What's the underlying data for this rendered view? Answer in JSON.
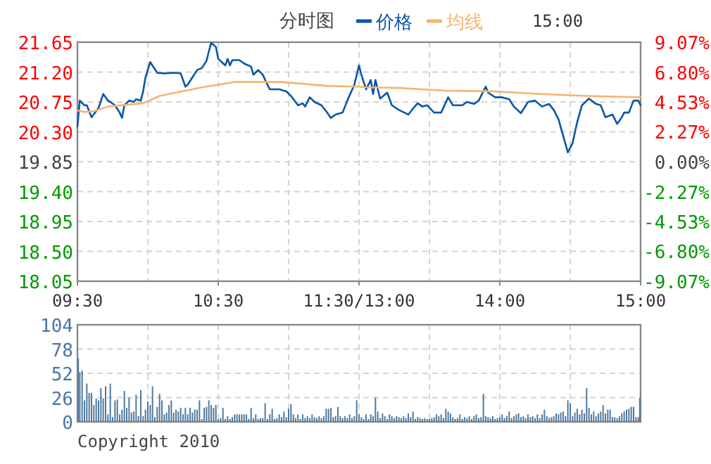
{
  "chart_data": [
    {
      "type": "line",
      "title": "分时图",
      "annotations": [
        "15:00"
      ],
      "legend": "top",
      "grid": true,
      "categories": [
        "09:30",
        null,
        null,
        null,
        null,
        null,
        null,
        null,
        null,
        null,
        null,
        null,
        null,
        null,
        null,
        null,
        null,
        null,
        null,
        null,
        null,
        null,
        null,
        null,
        null,
        null,
        null,
        null,
        null,
        null,
        null,
        null,
        null,
        null,
        null,
        null,
        null,
        null,
        null,
        null,
        null,
        null,
        null,
        null,
        null,
        null,
        null,
        null,
        null,
        null,
        null,
        null,
        null,
        null,
        null,
        null,
        null,
        null,
        null,
        null,
        "10:30",
        null,
        null,
        null,
        null,
        null,
        null,
        null,
        null,
        null,
        null,
        null,
        null,
        null,
        null,
        null,
        null,
        null,
        null,
        null,
        null,
        null,
        null,
        null,
        null,
        null,
        null,
        null,
        null,
        null,
        null,
        null,
        null,
        null,
        null,
        null,
        null,
        null,
        null,
        null,
        null,
        null,
        null,
        null,
        null,
        null,
        null,
        null,
        null,
        null,
        null,
        null,
        null,
        null,
        null,
        null,
        null,
        null,
        null,
        null,
        "11:30/13:00",
        null,
        null,
        null,
        null,
        null,
        null,
        null,
        null,
        null,
        null,
        null,
        null,
        null,
        null,
        null,
        null,
        null,
        null,
        null,
        null,
        null,
        null,
        null,
        null,
        null,
        null,
        null,
        null,
        null,
        null,
        null,
        null,
        null,
        null,
        null,
        null,
        null,
        null,
        null,
        null,
        null,
        null,
        null,
        null,
        null,
        null,
        null,
        null,
        null,
        null,
        null,
        null,
        null,
        null,
        null,
        null,
        null,
        null,
        null,
        "14:00",
        null,
        null,
        null,
        null,
        null,
        null,
        null,
        null,
        null,
        null,
        null,
        null,
        null,
        null,
        null,
        null,
        null,
        null,
        null,
        null,
        null,
        null,
        null,
        null,
        null,
        null,
        null,
        null,
        null,
        null,
        null,
        null,
        null,
        null,
        null,
        null,
        null,
        null,
        null,
        null,
        null,
        null,
        null,
        null,
        null,
        null,
        null,
        null,
        null,
        null,
        null,
        null,
        null,
        null,
        null,
        null,
        null,
        null,
        null,
        "15:00"
      ],
      "ylim": [
        18.05,
        21.65
      ],
      "yticks": [
        {
          "value": 18.05,
          "label": "18.05"
        },
        {
          "value": 18.5,
          "label": "18.50"
        },
        {
          "value": 18.95,
          "label": "18.95"
        },
        {
          "value": 19.4,
          "label": "19.40"
        },
        {
          "value": 19.85,
          "label": "19.85"
        },
        {
          "value": 20.3,
          "label": "20.30"
        },
        {
          "value": 20.75,
          "label": "20.75"
        },
        {
          "value": 21.2,
          "label": "21.20"
        },
        {
          "value": 21.65,
          "label": "21.65"
        }
      ],
      "y2lim": [
        -9.07,
        9.07
      ],
      "y2ticks": [
        {
          "value": -9.07,
          "label": "-9.07%"
        },
        {
          "value": -6.8,
          "label": "-6.80%"
        },
        {
          "value": -4.53,
          "label": "-4.53%"
        },
        {
          "value": -2.27,
          "label": "-2.27%"
        },
        {
          "value": 0,
          "label": "0.00%"
        },
        {
          "value": 2.27,
          "label": "2.27%"
        },
        {
          "value": 4.53,
          "label": "4.53%"
        },
        {
          "value": 6.8,
          "label": "6.80%"
        },
        {
          "value": 9.07,
          "label": "9.07%"
        }
      ],
      "series": [
        {
          "name": "价格",
          "color": "#0a56a8",
          "values": [
            20.38,
            20.77,
            null,
            20.7,
            20.7,
            null,
            20.52,
            null,
            null,
            20.66,
            null,
            20.87,
            null,
            20.77,
            20.75,
            null,
            20.7,
            null,
            20.59,
            20.51,
            20.7,
            null,
            20.77,
            null,
            20.75,
            20.79,
            null,
            20.77,
            20.91,
            21.12,
            null,
            21.35,
            null,
            null,
            21.19,
            null,
            null,
            21.18,
            null,
            null,
            null,
            21.19,
            null,
            null,
            21.18,
            null,
            20.98,
            21.01,
            null,
            21.12,
            null,
            21.23,
            null,
            21.26,
            null,
            21.37,
            21.51,
            21.64,
            null,
            21.58,
            21.4,
            null,
            null,
            21.3,
            21.4,
            21.3,
            21.38,
            null,
            null,
            21.38,
            null,
            21.33,
            null,
            null,
            21.28,
            21.16,
            null,
            21.23,
            null,
            21.16,
            21.08,
            null,
            20.94,
            null,
            null,
            null,
            20.94,
            null,
            null,
            20.91,
            null,
            20.84,
            null,
            null,
            20.7,
            null,
            20.73,
            20.68,
            null,
            20.82,
            null,
            20.75,
            null,
            null,
            20.7,
            null,
            20.61,
            null,
            20.51,
            null,
            20.56,
            null,
            null,
            20.59,
            null,
            20.77,
            null,
            null,
            21.01,
            null,
            21.3,
            21.16,
            null,
            20.94,
            null,
            21.08,
            20.87,
            21.08,
            null,
            20.8,
            null,
            null,
            20.89,
            null,
            20.7,
            null,
            null,
            20.63,
            null,
            null,
            null,
            20.56,
            null,
            20.65,
            null,
            20.73,
            null,
            20.68,
            null,
            20.7,
            null,
            null,
            20.59,
            null,
            null,
            20.59,
            null,
            null,
            20.82,
            null,
            20.7,
            null,
            null,
            null,
            20.7,
            null,
            20.75,
            null,
            null,
            20.72,
            null,
            20.77,
            null,
            null,
            20.98,
            20.89,
            null,
            null,
            20.82,
            null,
            null,
            20.82,
            null,
            null,
            20.79,
            null,
            20.68,
            null,
            null,
            20.58,
            null,
            null,
            20.75,
            null,
            null,
            20.77,
            null,
            null,
            20.68,
            null,
            null,
            20.72,
            null,
            20.63,
            null,
            20.49,
            null,
            20.24,
            null,
            19.99,
            null,
            20.13,
            null,
            20.45,
            null,
            20.7,
            null,
            null,
            20.8,
            null,
            null,
            20.72,
            null,
            20.7,
            null,
            20.52,
            null,
            null,
            20.56,
            null,
            20.42,
            null,
            20.52,
            20.59,
            null,
            20.59,
            null,
            20.77,
            null,
            20.77,
            20.7
          ]
        },
        {
          "name": "均线",
          "color": "#f5b46e",
          "values": [
            20.62,
            null,
            null,
            20.6,
            null,
            null,
            null,
            20.61,
            null,
            null,
            null,
            null,
            null,
            20.68,
            null,
            null,
            null,
            null,
            null,
            null,
            null,
            null,
            null,
            null,
            null,
            null,
            null,
            null,
            20.73,
            null,
            null,
            null,
            null,
            null,
            null,
            20.84,
            null,
            null,
            null,
            null,
            null,
            null,
            null,
            null,
            null,
            null,
            null,
            null,
            null,
            null,
            null,
            null,
            null,
            20.97,
            null,
            null,
            null,
            null,
            null,
            null,
            null,
            null,
            null,
            null,
            null,
            null,
            null,
            21.05,
            null,
            null,
            null,
            null,
            null,
            null,
            null,
            null,
            null,
            null,
            null,
            null,
            null,
            null,
            null,
            null,
            null,
            null,
            null,
            21.05,
            null,
            null,
            null,
            null,
            null,
            null,
            null,
            null,
            null,
            null,
            null,
            null,
            null,
            null,
            null,
            null,
            null,
            null,
            null,
            20.99,
            null,
            null,
            null,
            null,
            null,
            null,
            null,
            null,
            null,
            null,
            null,
            null,
            20.98,
            null,
            null,
            20.97,
            null,
            null,
            null,
            null,
            null,
            null,
            null,
            null,
            null,
            null,
            null,
            null,
            null,
            20.96,
            null,
            null,
            null,
            null,
            null,
            null,
            null,
            null,
            null,
            null,
            null,
            null,
            null,
            null,
            null,
            null,
            null,
            null,
            null,
            20.92,
            null,
            null,
            null,
            null,
            null,
            null,
            null,
            null,
            null,
            null,
            null,
            null,
            null,
            null,
            null,
            null,
            null,
            null,
            null,
            20.91,
            null,
            null,
            null,
            null,
            null,
            null,
            null,
            null,
            null,
            null,
            null,
            null,
            null,
            null,
            null,
            null,
            null,
            null,
            null,
            20.87,
            null,
            null,
            null,
            null,
            null,
            null,
            null,
            null,
            null,
            null,
            null,
            null,
            null,
            null,
            null,
            null,
            null,
            null,
            null,
            20.84,
            null,
            null,
            null,
            null,
            null,
            null,
            null,
            null,
            null,
            null,
            null,
            null,
            null,
            null,
            null,
            null,
            null,
            null,
            null,
            null,
            null,
            null,
            20.82
          ]
        }
      ]
    },
    {
      "type": "bar",
      "annotations": [
        "Copyright 2010"
      ],
      "grid": true,
      "tick_labels": "y",
      "color": "#4f7aa0",
      "categories": [
        null,
        null,
        null,
        null,
        null,
        null,
        null,
        null,
        null,
        null,
        null,
        null,
        null,
        null,
        null,
        null,
        null,
        null,
        null,
        null,
        null,
        null,
        null,
        null,
        null,
        null,
        null,
        null,
        null,
        null,
        null,
        null,
        null,
        null,
        null,
        null,
        null,
        null,
        null,
        null,
        null,
        null,
        null,
        null,
        null,
        null,
        null,
        null,
        null,
        null,
        null,
        null,
        null,
        null,
        null,
        null,
        null,
        null,
        null,
        null,
        null,
        null,
        null,
        null,
        null,
        null,
        null,
        null,
        null,
        null,
        null,
        null,
        null,
        null,
        null,
        null,
        null,
        null,
        null,
        null,
        null,
        null,
        null,
        null,
        null,
        null,
        null,
        null,
        null,
        null,
        null,
        null,
        null,
        null,
        null,
        null,
        null,
        null,
        null,
        null,
        null,
        null,
        null,
        null,
        null,
        null,
        null,
        null,
        null,
        null,
        null,
        null,
        null,
        null,
        null,
        null,
        null,
        null,
        null,
        null,
        null,
        null,
        null,
        null,
        null,
        null,
        null,
        null,
        null,
        null,
        null,
        null,
        null,
        null,
        null,
        null,
        null,
        null,
        null,
        null,
        null,
        null,
        null,
        null,
        null,
        null,
        null,
        null,
        null,
        null,
        null,
        null,
        null,
        null,
        null,
        null,
        null,
        null,
        null,
        null,
        null,
        null,
        null,
        null,
        null,
        null,
        null,
        null,
        null,
        null,
        null,
        null,
        null,
        null,
        null,
        null,
        null,
        null,
        null,
        null,
        null,
        null,
        null,
        null,
        null,
        null,
        null,
        null,
        null,
        null,
        null,
        null,
        null,
        null,
        null,
        null,
        null,
        null,
        null,
        null,
        null,
        null,
        null,
        null,
        null,
        null,
        null,
        null,
        null,
        null,
        null,
        null,
        null,
        null,
        null,
        null,
        null,
        null,
        null,
        null,
        null,
        null,
        null,
        null,
        null,
        null,
        null,
        null,
        null,
        null,
        null,
        null,
        null,
        null,
        null,
        null,
        null,
        null,
        null,
        null,
        null
      ],
      "ylim": [
        0,
        104
      ],
      "yticks": [
        0,
        26,
        52,
        78,
        104
      ],
      "values": [
        68,
        53,
        55,
        23,
        41,
        31,
        31,
        18,
        25,
        23,
        36,
        25,
        38,
        8,
        41,
        5,
        23,
        24,
        8,
        13,
        33,
        15,
        26,
        10,
        11,
        29,
        6,
        34,
        6,
        13,
        22,
        18,
        38,
        5,
        16,
        30,
        23,
        8,
        10,
        18,
        23,
        10,
        13,
        11,
        15,
        8,
        15,
        8,
        15,
        10,
        13,
        13,
        23,
        3,
        15,
        16,
        23,
        18,
        15,
        18,
        3,
        4,
        15,
        3,
        6,
        3,
        5,
        8,
        8,
        8,
        8,
        8,
        8,
        3,
        15,
        4,
        8,
        3,
        4,
        4,
        20,
        3,
        8,
        14,
        3,
        4,
        8,
        5,
        11,
        5,
        14,
        19,
        8,
        4,
        8,
        3,
        8,
        4,
        6,
        4,
        8,
        5,
        4,
        6,
        4,
        6,
        14,
        14,
        15,
        5,
        6,
        16,
        6,
        4,
        6,
        4,
        8,
        4,
        6,
        23,
        8,
        5,
        3,
        8,
        3,
        8,
        6,
        26,
        11,
        4,
        9,
        6,
        3,
        8,
        6,
        4,
        6,
        5,
        4,
        6,
        4,
        9,
        5,
        11,
        3,
        5,
        4,
        3,
        4,
        3,
        3,
        4,
        5,
        8,
        6,
        8,
        4,
        14,
        11,
        9,
        5,
        3,
        4,
        8,
        3,
        5,
        4,
        6,
        3,
        6,
        8,
        4,
        5,
        30,
        6,
        5,
        4,
        6,
        3,
        4,
        5,
        8,
        4,
        6,
        11,
        4,
        6,
        8,
        9,
        5,
        6,
        4,
        8,
        5,
        6,
        4,
        8,
        4,
        8,
        13,
        6,
        4,
        5,
        6,
        9,
        8,
        10,
        11,
        6,
        23,
        20,
        6,
        10,
        14,
        8,
        13,
        9,
        36,
        15,
        8,
        11,
        6,
        9,
        11,
        18,
        9,
        13,
        13,
        5,
        5,
        4,
        6,
        9,
        11,
        13,
        14,
        16,
        16,
        5,
        5,
        26
      ]
    }
  ]
}
